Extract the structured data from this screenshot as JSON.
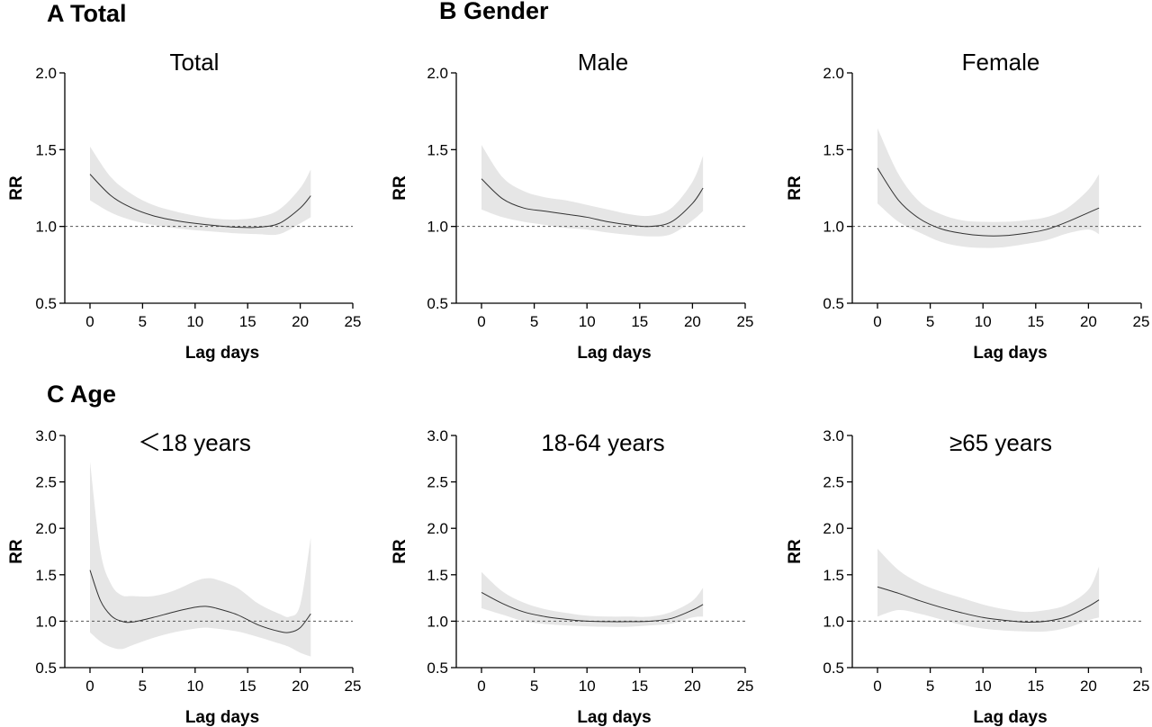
{
  "sections": {
    "a": "A Total",
    "b": "B Gender",
    "c": "C Age"
  },
  "chart_data": [
    {
      "type": "line",
      "title": "Total",
      "xlabel": "Lag days",
      "ylabel": "RR",
      "xlim": [
        -2,
        25
      ],
      "ylim": [
        0.5,
        2.0
      ],
      "xticks": [
        "0",
        "5",
        "10",
        "15",
        "20",
        "25"
      ],
      "yticks": [
        "0.5",
        "1.0",
        "1.5",
        "2.0"
      ],
      "reference_line": 1.0,
      "x": [
        0,
        2,
        4,
        6,
        8,
        10,
        12,
        14,
        16,
        18,
        20,
        21
      ],
      "series": [
        {
          "estimate": [
            1.34,
            1.2,
            1.12,
            1.07,
            1.04,
            1.02,
            1.005,
            0.995,
            0.995,
            1.02,
            1.12,
            1.2
          ],
          "lower": [
            1.17,
            1.09,
            1.04,
            1.01,
            0.99,
            0.975,
            0.965,
            0.955,
            0.95,
            0.95,
            1.02,
            1.06
          ],
          "upper": [
            1.52,
            1.32,
            1.21,
            1.14,
            1.1,
            1.07,
            1.05,
            1.045,
            1.06,
            1.11,
            1.25,
            1.37
          ]
        }
      ]
    },
    {
      "type": "line",
      "title": "Male",
      "xlabel": "Lag days",
      "ylabel": "RR",
      "xlim": [
        -2,
        25
      ],
      "ylim": [
        0.5,
        2.0
      ],
      "xticks": [
        "0",
        "5",
        "10",
        "15",
        "20",
        "25"
      ],
      "yticks": [
        "0.5",
        "1.0",
        "1.5",
        "2.0"
      ],
      "reference_line": 1.0,
      "x": [
        0,
        2,
        4,
        6,
        8,
        10,
        12,
        14,
        16,
        18,
        20,
        21
      ],
      "series": [
        {
          "estimate": [
            1.31,
            1.18,
            1.12,
            1.1,
            1.08,
            1.06,
            1.03,
            1.01,
            1.0,
            1.03,
            1.15,
            1.25
          ],
          "lower": [
            1.11,
            1.06,
            1.03,
            1.01,
            0.99,
            0.98,
            0.96,
            0.945,
            0.935,
            0.95,
            1.04,
            1.1
          ],
          "upper": [
            1.53,
            1.32,
            1.23,
            1.19,
            1.17,
            1.14,
            1.11,
            1.08,
            1.07,
            1.12,
            1.29,
            1.46
          ]
        }
      ]
    },
    {
      "type": "line",
      "title": "Female",
      "xlabel": "Lag days",
      "ylabel": "RR",
      "xlim": [
        -2,
        25
      ],
      "ylim": [
        0.5,
        2.0
      ],
      "xticks": [
        "0",
        "5",
        "10",
        "15",
        "20",
        "25"
      ],
      "yticks": [
        "0.5",
        "1.0",
        "1.5",
        "2.0"
      ],
      "reference_line": 1.0,
      "x": [
        0,
        2,
        4,
        6,
        8,
        10,
        12,
        14,
        16,
        18,
        20,
        21
      ],
      "series": [
        {
          "estimate": [
            1.38,
            1.17,
            1.05,
            0.985,
            0.955,
            0.94,
            0.94,
            0.955,
            0.98,
            1.03,
            1.09,
            1.12
          ],
          "lower": [
            1.15,
            1.03,
            0.96,
            0.9,
            0.87,
            0.86,
            0.865,
            0.885,
            0.91,
            0.955,
            0.98,
            0.95
          ],
          "upper": [
            1.64,
            1.34,
            1.16,
            1.08,
            1.04,
            1.03,
            1.03,
            1.04,
            1.06,
            1.12,
            1.24,
            1.34
          ]
        }
      ]
    },
    {
      "type": "line",
      "title": "＜18 years",
      "xlabel": "Lag days",
      "ylabel": "RR",
      "xlim": [
        -2,
        25
      ],
      "ylim": [
        0.5,
        3.0
      ],
      "xticks": [
        "0",
        "5",
        "10",
        "15",
        "20",
        "25"
      ],
      "yticks": [
        "0.5",
        "1.0",
        "1.5",
        "2.0",
        "2.5",
        "3.0"
      ],
      "reference_line": 1.0,
      "x": [
        0,
        1,
        2,
        3,
        4,
        6,
        8,
        10,
        11,
        12,
        14,
        16,
        18,
        19,
        20,
        21
      ],
      "series": [
        {
          "estimate": [
            1.55,
            1.22,
            1.06,
            1.0,
            0.99,
            1.04,
            1.1,
            1.15,
            1.16,
            1.14,
            1.07,
            0.96,
            0.89,
            0.88,
            0.93,
            1.08
          ],
          "lower": [
            0.88,
            0.78,
            0.72,
            0.7,
            0.74,
            0.82,
            0.88,
            0.92,
            0.93,
            0.92,
            0.89,
            0.83,
            0.76,
            0.72,
            0.66,
            0.62
          ],
          "upper": [
            2.72,
            1.75,
            1.4,
            1.28,
            1.27,
            1.27,
            1.33,
            1.43,
            1.46,
            1.45,
            1.36,
            1.19,
            1.08,
            1.05,
            1.18,
            1.9
          ]
        }
      ]
    },
    {
      "type": "line",
      "title": "18-64 years",
      "xlabel": "Lag days",
      "ylabel": "RR",
      "xlim": [
        -2,
        25
      ],
      "ylim": [
        0.5,
        3.0
      ],
      "xticks": [
        "0",
        "5",
        "10",
        "15",
        "20",
        "25"
      ],
      "yticks": [
        "0.5",
        "1.0",
        "1.5",
        "2.0",
        "2.5",
        "3.0"
      ],
      "reference_line": 1.0,
      "x": [
        0,
        2,
        4,
        6,
        8,
        10,
        12,
        14,
        16,
        18,
        20,
        21
      ],
      "series": [
        {
          "estimate": [
            1.31,
            1.19,
            1.1,
            1.05,
            1.02,
            1.0,
            0.995,
            0.995,
            1.0,
            1.03,
            1.12,
            1.18
          ],
          "lower": [
            1.14,
            1.07,
            1.0,
            0.97,
            0.955,
            0.945,
            0.94,
            0.94,
            0.955,
            0.975,
            1.04,
            1.05
          ],
          "upper": [
            1.53,
            1.32,
            1.2,
            1.13,
            1.09,
            1.06,
            1.05,
            1.05,
            1.05,
            1.1,
            1.22,
            1.36
          ]
        }
      ]
    },
    {
      "type": "line",
      "title": "≥65 years",
      "xlabel": "Lag days",
      "ylabel": "RR",
      "xlim": [
        -2,
        25
      ],
      "ylim": [
        0.5,
        3.0
      ],
      "xticks": [
        "0",
        "5",
        "10",
        "15",
        "20",
        "25"
      ],
      "yticks": [
        "0.5",
        "1.0",
        "1.5",
        "2.0",
        "2.5",
        "3.0"
      ],
      "reference_line": 1.0,
      "x": [
        0,
        2,
        4,
        6,
        8,
        10,
        12,
        14,
        16,
        18,
        20,
        21
      ],
      "series": [
        {
          "estimate": [
            1.37,
            1.3,
            1.22,
            1.15,
            1.09,
            1.04,
            1.01,
            0.99,
            1.0,
            1.05,
            1.16,
            1.23
          ],
          "lower": [
            1.05,
            1.12,
            1.08,
            1.02,
            0.96,
            0.92,
            0.9,
            0.89,
            0.89,
            0.93,
            1.01,
            1.04
          ],
          "upper": [
            1.78,
            1.55,
            1.41,
            1.32,
            1.25,
            1.18,
            1.13,
            1.1,
            1.12,
            1.18,
            1.34,
            1.59
          ]
        }
      ]
    }
  ]
}
